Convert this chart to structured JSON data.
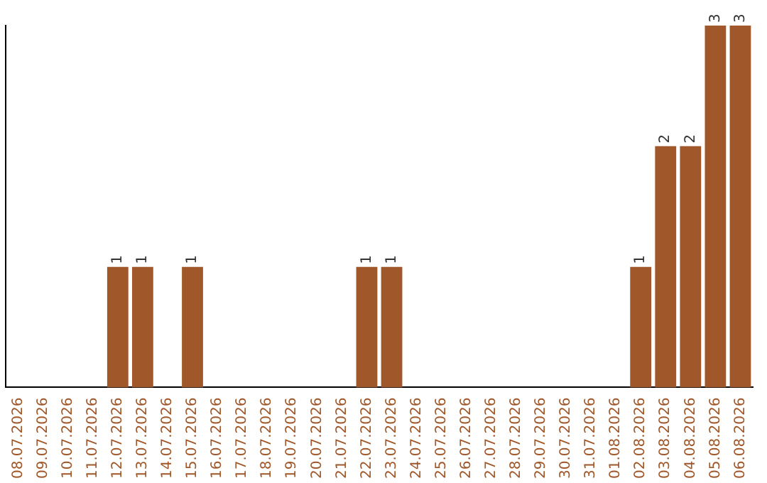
{
  "chart_data": {
    "type": "bar",
    "categories": [
      "08.07.2026",
      "09.07.2026",
      "10.07.2026",
      "11.07.2026",
      "12.07.2026",
      "13.07.2026",
      "14.07.2026",
      "15.07.2026",
      "16.07.2026",
      "17.07.2026",
      "18.07.2026",
      "19.07.2026",
      "20.07.2026",
      "21.07.2026",
      "22.07.2026",
      "23.07.2026",
      "24.07.2026",
      "25.07.2026",
      "26.07.2026",
      "27.07.2026",
      "28.07.2026",
      "29.07.2026",
      "30.07.2026",
      "31.07.2026",
      "01.08.2026",
      "02.08.2026",
      "03.08.2026",
      "04.08.2026",
      "05.08.2026",
      "06.08.2026"
    ],
    "values": [
      0,
      0,
      0,
      0,
      1,
      1,
      0,
      1,
      0,
      0,
      0,
      0,
      0,
      0,
      1,
      1,
      0,
      0,
      0,
      0,
      0,
      0,
      0,
      0,
      0,
      1,
      2,
      2,
      3,
      3
    ],
    "value_labels": [
      null,
      null,
      null,
      null,
      "1",
      "1",
      null,
      "1",
      null,
      null,
      null,
      null,
      null,
      null,
      "1",
      "1",
      null,
      null,
      null,
      null,
      null,
      null,
      null,
      null,
      null,
      "1",
      "2",
      "2",
      "3",
      "3"
    ],
    "color": "#a0582a",
    "grid": false,
    "legend": false,
    "tick_labels": "x"
  }
}
